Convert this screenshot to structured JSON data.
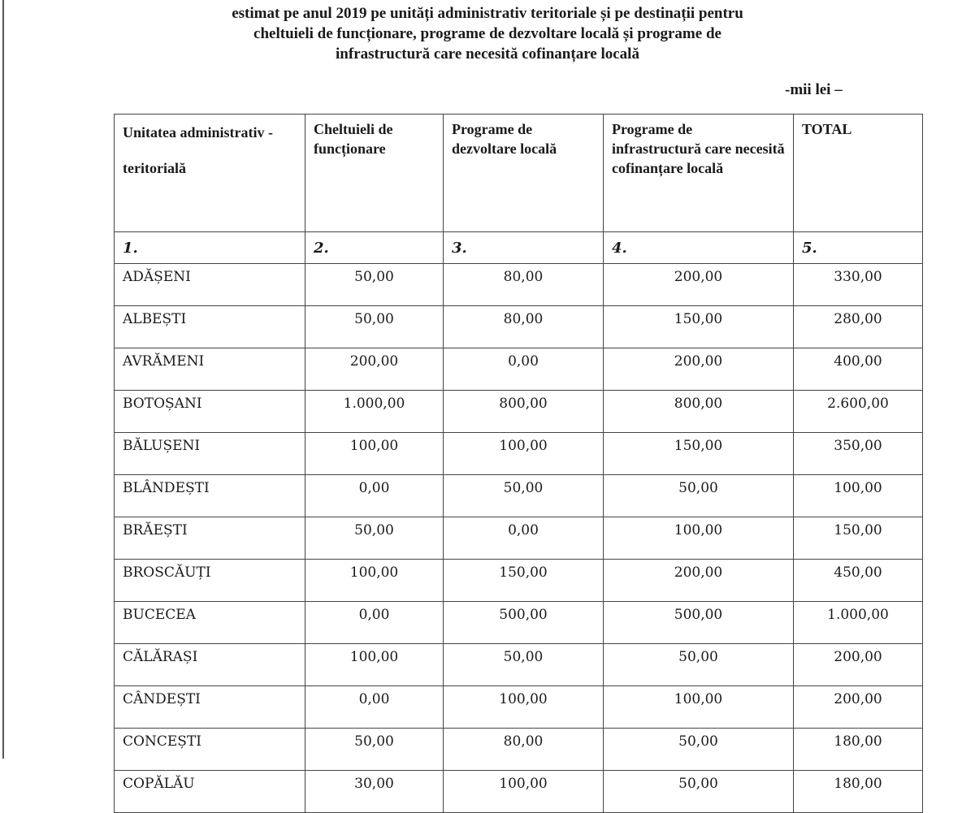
{
  "title_lines": [
    "estimat pe anul 2019 pe unități administrativ teritoriale și pe destinații pentru",
    "cheltuieli de funcționare, programe de dezvoltare locală și programe de",
    "infrastructură care necesită cofinanțare locală"
  ],
  "unit": "-mii lei –",
  "table": {
    "headers": [
      "Unitatea administrativ - teritorială",
      "Cheltuieli de funcționare",
      "Programe de dezvoltare locală",
      "Programe de infrastructură care necesită cofinanțare locală",
      "TOTAL"
    ],
    "column_numbers": [
      "1.",
      "2.",
      "3.",
      "4.",
      "5."
    ],
    "rows": [
      [
        "ADĂȘENI",
        "50,00",
        "80,00",
        "200,00",
        "330,00"
      ],
      [
        "ALBEȘTI",
        "50,00",
        "80,00",
        "150,00",
        "280,00"
      ],
      [
        "AVRĂMENI",
        "200,00",
        "0,00",
        "200,00",
        "400,00"
      ],
      [
        "BOTOȘANI",
        "1.000,00",
        "800,00",
        "800,00",
        "2.600,00"
      ],
      [
        "BĂLUȘENI",
        "100,00",
        "100,00",
        "150,00",
        "350,00"
      ],
      [
        "BLÂNDEȘTI",
        "0,00",
        "50,00",
        "50,00",
        "100,00"
      ],
      [
        "BRĂEȘTI",
        "50,00",
        "0,00",
        "100,00",
        "150,00"
      ],
      [
        "BROSCĂUȚI",
        "100,00",
        "150,00",
        "200,00",
        "450,00"
      ],
      [
        "BUCECEA",
        "0,00",
        "500,00",
        "500,00",
        "1.000,00"
      ],
      [
        "CĂLĂRAȘI",
        "100,00",
        "50,00",
        "50,00",
        "200,00"
      ],
      [
        "CÂNDEȘTI",
        "0,00",
        "100,00",
        "100,00",
        "200,00"
      ],
      [
        "CONCEȘTI",
        "50,00",
        "80,00",
        "50,00",
        "180,00"
      ],
      [
        "COPĂLĂU",
        "30,00",
        "100,00",
        "50,00",
        "180,00"
      ]
    ]
  }
}
